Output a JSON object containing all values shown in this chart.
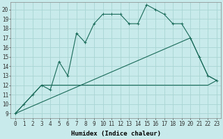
{
  "xlabel": "Humidex (Indice chaleur)",
  "bg_color": "#c8eaea",
  "grid_color": "#aad4d4",
  "line_color": "#1a6b5a",
  "xlim": [
    -0.5,
    23.5
  ],
  "ylim": [
    8.5,
    20.8
  ],
  "xticks": [
    0,
    1,
    2,
    3,
    4,
    5,
    6,
    7,
    8,
    9,
    10,
    11,
    12,
    13,
    14,
    15,
    16,
    17,
    18,
    19,
    20,
    21,
    22,
    23
  ],
  "yticks": [
    9,
    10,
    11,
    12,
    13,
    14,
    15,
    16,
    17,
    18,
    19,
    20
  ],
  "line1_x": [
    0,
    1,
    2,
    3,
    4,
    5,
    6,
    7,
    8,
    9,
    10,
    11,
    12,
    13,
    14,
    15,
    16,
    17,
    18,
    19,
    20,
    21,
    22,
    23
  ],
  "line1_y": [
    9,
    10,
    11,
    12,
    11.5,
    14.5,
    13,
    17.5,
    16.5,
    18.5,
    19.5,
    19.5,
    19.5,
    18.5,
    18.5,
    20.5,
    20,
    19.5,
    18.5,
    18.5,
    17,
    15,
    13,
    12.5
  ],
  "line2_x": [
    0,
    3,
    22,
    23
  ],
  "line2_y": [
    9,
    12,
    12,
    12.5
  ],
  "line3_x": [
    0,
    20,
    21,
    22,
    23
  ],
  "line3_y": [
    9,
    17,
    15,
    13,
    12.5
  ],
  "font_size_label": 6.5,
  "font_size_tick": 5.5,
  "marker_size": 3.0,
  "line_width": 0.8
}
